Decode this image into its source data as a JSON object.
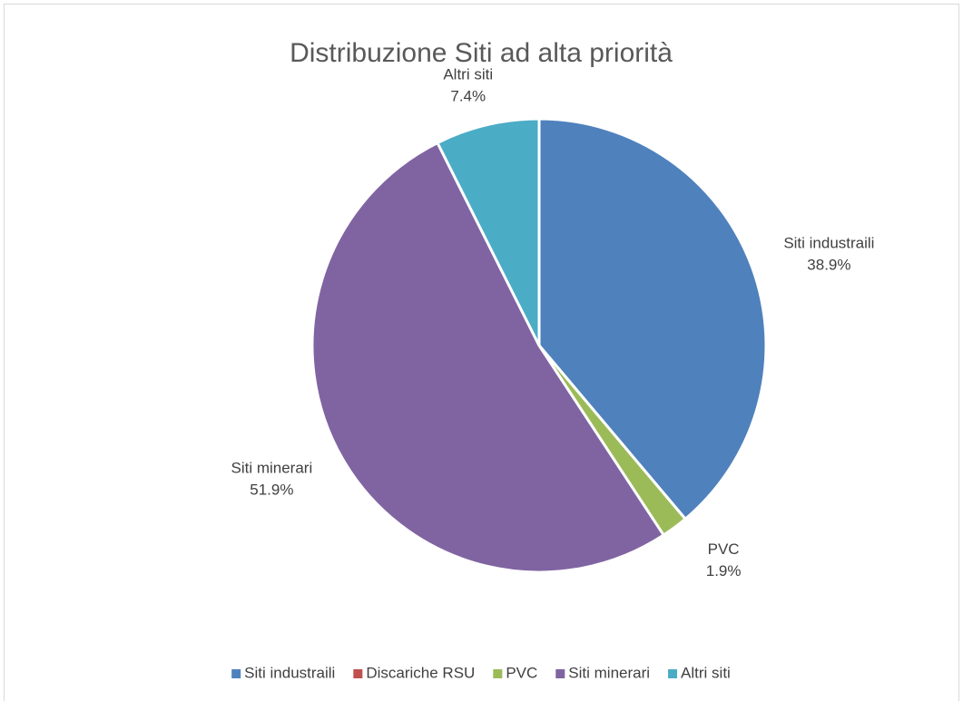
{
  "chart_data": {
    "type": "pie",
    "title": "Distribuzione Siti ad alta priorità",
    "categories": [
      "Siti industraili",
      "Discariche RSU",
      "PVC",
      "Siti minerari",
      "Altri siti"
    ],
    "values": [
      38.9,
      0,
      1.9,
      51.9,
      7.4
    ],
    "value_labels": [
      "38.9%",
      null,
      "1.9%",
      "51.9%",
      "7.4%"
    ],
    "colors": [
      "#4f81bd",
      "#c0504d",
      "#9bbb59",
      "#8064a2",
      "#4bacc6"
    ],
    "legend": "bottom"
  }
}
